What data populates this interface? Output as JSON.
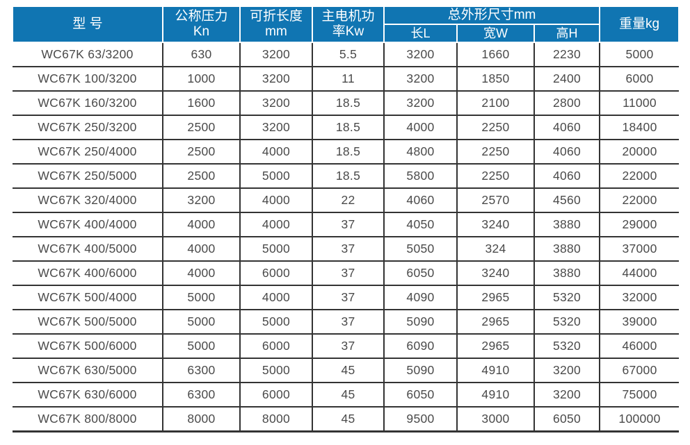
{
  "colors": {
    "header_bg": "#1075b2",
    "header_text": "#ffffff",
    "body_text": "#4a4a4a",
    "grid_line": "#333333",
    "page_bg": "#ffffff"
  },
  "table": {
    "headers": {
      "model": "型 号",
      "nominal_pressure": "公称压力\nKn",
      "folding_length": "可折长度\nmm",
      "motor_power": "主电机功\n率Kw",
      "overall_dimensions": "总外形尺寸mm",
      "dim_length": "长L",
      "dim_width": "宽W",
      "dim_height": "高H",
      "weight": "重量kg"
    },
    "rows": [
      [
        "WC67K 63/3200",
        "630",
        "3200",
        "5.5",
        "3200",
        "1660",
        "2230",
        "5000"
      ],
      [
        "WC67K 100/3200",
        "1000",
        "3200",
        "11",
        "3200",
        "1850",
        "2400",
        "6000"
      ],
      [
        "WC67K 160/3200",
        "1600",
        "3200",
        "18.5",
        "3200",
        "2100",
        "2800",
        "11000"
      ],
      [
        "WC67K 250/3200",
        "2500",
        "3200",
        "18.5",
        "4000",
        "2250",
        "4060",
        "18400"
      ],
      [
        "WC67K 250/4000",
        "2500",
        "4000",
        "18.5",
        "4800",
        "2250",
        "4060",
        "20000"
      ],
      [
        "WC67K 250/5000",
        "2500",
        "5000",
        "18.5",
        "5800",
        "2250",
        "4060",
        "22000"
      ],
      [
        "WC67K 320/4000",
        "3200",
        "4000",
        "22",
        "4060",
        "2570",
        "4560",
        "22000"
      ],
      [
        "WC67K 400/4000",
        "4000",
        "4000",
        "37",
        "4050",
        "3240",
        "3880",
        "29000"
      ],
      [
        "WC67K 400/5000",
        "4000",
        "5000",
        "37",
        "5050",
        "324",
        "3880",
        "37000"
      ],
      [
        "WC67K 400/6000",
        "4000",
        "6000",
        "37",
        "6050",
        "3240",
        "3880",
        "44000"
      ],
      [
        "WC67K 500/4000",
        "5000",
        "4000",
        "37",
        "4090",
        "2965",
        "5320",
        "32000"
      ],
      [
        "WC67K 500/5000",
        "5000",
        "5000",
        "37",
        "5090",
        "2965",
        "5320",
        "39000"
      ],
      [
        "WC67K 500/6000",
        "5000",
        "6000",
        "37",
        "6090",
        "2965",
        "5320",
        "46000"
      ],
      [
        "WC67K 630/5000",
        "6300",
        "5000",
        "45",
        "5090",
        "4910",
        "3200",
        "67000"
      ],
      [
        "WC67K 630/6000",
        "6300",
        "6000",
        "45",
        "6050",
        "4910",
        "3200",
        "75000"
      ],
      [
        "WC67K 800/8000",
        "8000",
        "8000",
        "45",
        "9500",
        "3000",
        "6050",
        "100000"
      ]
    ]
  }
}
